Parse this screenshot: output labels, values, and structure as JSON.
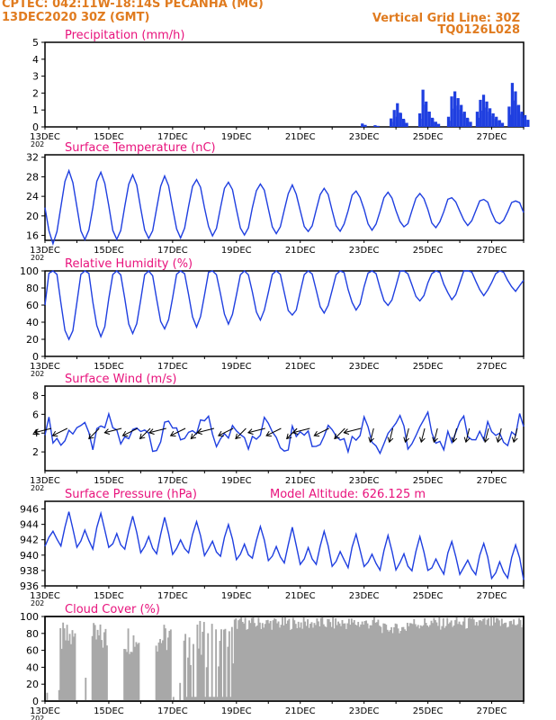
{
  "header": {
    "line1": "CPTEC:   042:11W-18:14S   PECANHA (MG)",
    "line2": "13DEC2020 30Z (GMT)",
    "grid_note": "Vertical Grid Line: 30Z",
    "code": "TQ0126L028"
  },
  "colors": {
    "header": "#e07b1f",
    "title": "#e8127c",
    "line": "#1f3fe0",
    "cloud": "#a8a8a8",
    "arrow": "#000000"
  },
  "x_axis": {
    "day_start": 13,
    "day_end": 28,
    "tick_days": [
      13,
      15,
      17,
      19,
      21,
      23,
      25,
      27
    ],
    "tick_labels": [
      "13DEC",
      "15DEC",
      "17DEC",
      "19DEC",
      "21DEC",
      "23DEC",
      "25DEC",
      "27DEC"
    ],
    "year_stub": "202"
  },
  "chart_data": [
    {
      "type": "bar",
      "title": "Precipitation (mm/h)",
      "ylim": [
        0,
        5
      ],
      "yticks": [
        0,
        1,
        2,
        3,
        4,
        5
      ],
      "bars": [
        [
          22.9,
          0.2
        ],
        [
          23.3,
          0.1
        ],
        [
          23.8,
          0.5
        ],
        [
          23.9,
          1.0
        ],
        [
          24.0,
          1.4
        ],
        [
          24.1,
          0.8
        ],
        [
          24.2,
          0.4
        ],
        [
          24.7,
          0.8
        ],
        [
          24.8,
          2.2
        ],
        [
          24.9,
          1.5
        ],
        [
          25.0,
          0.9
        ],
        [
          25.1,
          0.5
        ],
        [
          25.2,
          0.3
        ],
        [
          25.6,
          0.6
        ],
        [
          25.7,
          1.8
        ],
        [
          25.8,
          2.1
        ],
        [
          25.9,
          1.7
        ],
        [
          26.0,
          1.3
        ],
        [
          26.1,
          0.9
        ],
        [
          26.2,
          0.5
        ],
        [
          26.5,
          0.9
        ],
        [
          26.6,
          1.6
        ],
        [
          26.7,
          1.9
        ],
        [
          26.8,
          1.5
        ],
        [
          26.9,
          1.1
        ],
        [
          27.0,
          0.8
        ],
        [
          27.1,
          0.6
        ],
        [
          27.2,
          0.4
        ],
        [
          27.5,
          1.2
        ],
        [
          27.6,
          2.6
        ],
        [
          27.7,
          2.1
        ],
        [
          27.8,
          1.3
        ],
        [
          27.9,
          0.9
        ],
        [
          28.0,
          0.7
        ]
      ]
    },
    {
      "type": "line",
      "title": "Surface Temperature (nC)",
      "ylim": [
        15,
        32.5
      ],
      "yticks": [
        16,
        20,
        24,
        28,
        32
      ],
      "base": 22,
      "amp_start": 7.5,
      "amp_end": 2.2,
      "amp_floor": 2.0,
      "base_end_offset": -1.2,
      "phase_peak_day_fraction": 0.75
    },
    {
      "type": "line",
      "title": "Relative Humidity (%)",
      "ylim": [
        0,
        100
      ],
      "yticks": [
        0,
        20,
        40,
        60,
        80,
        100
      ],
      "base": 62,
      "amp_start": 38,
      "amp_end": 10,
      "amp_floor": 8,
      "clip": [
        20,
        100
      ],
      "base_end_offset": 28
    },
    {
      "type": "line",
      "title": "Surface Wind (m/s)",
      "ylim": [
        0,
        9
      ],
      "yticks": [
        2,
        4,
        6,
        8
      ],
      "base": 4.0,
      "amp_start": 1.4,
      "amp_end": 1.8,
      "amp_floor": 1.2,
      "arrow_days": [
        13.2,
        13.7,
        14.7,
        15.4,
        15.9,
        16.3,
        16.8,
        17.4,
        17.9,
        18.3,
        18.9,
        19.3,
        19.9,
        20.4,
        20.9,
        21.3,
        21.9,
        22.4,
        22.9,
        23.3,
        23.9,
        24.4,
        24.9,
        25.3,
        25.9,
        26.3,
        26.9,
        27.3,
        27.8
      ]
    },
    {
      "type": "line",
      "title": "Surface Pressure (hPa)",
      "altitude_label": "Model Altitude: 626.125 m",
      "ylim": [
        936,
        947
      ],
      "yticks": [
        936,
        938,
        940,
        942,
        944,
        946
      ],
      "base": 943,
      "amp_start": 2.0,
      "amp_end": 2.0,
      "amp_floor": 1.5,
      "base_end_offset": -4.5
    },
    {
      "type": "bar",
      "title": "Cloud Cover (%)",
      "ylim": [
        0,
        100
      ],
      "yticks": [
        0,
        20,
        40,
        60,
        80,
        100
      ]
    }
  ]
}
